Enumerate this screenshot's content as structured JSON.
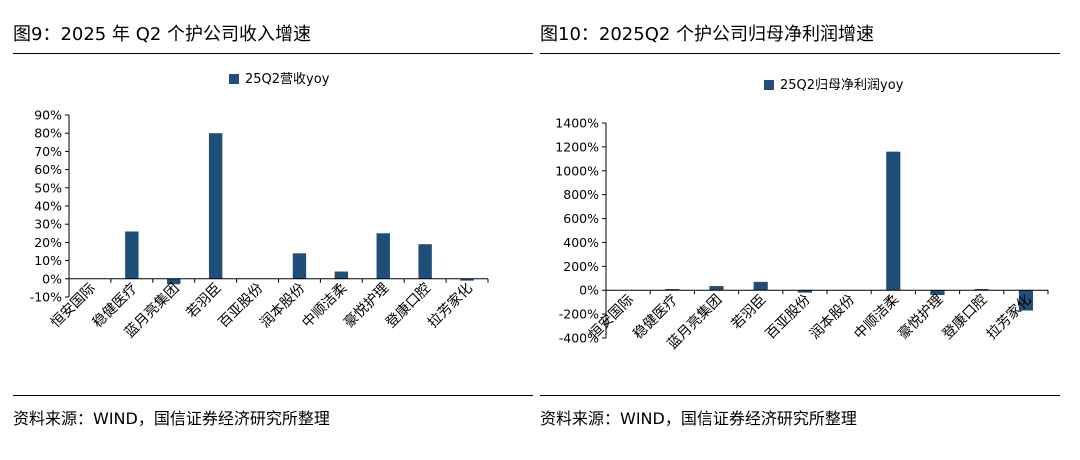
{
  "chart_data": [
    {
      "type": "bar",
      "title": "图9：2025 年 Q2 个护公司收入增速",
      "source": "资料来源：WIND，国信证券经济研究所整理",
      "categories": [
        "恒安国际",
        "稳健医疗",
        "蓝月亮集团",
        "若羽臣",
        "百亚股份",
        "润本股份",
        "中顺洁柔",
        "豪悦护理",
        "登康口腔",
        "拉芳家化"
      ],
      "series": [
        {
          "name": "25Q2营收yoy",
          "values": [
            0,
            26,
            -3,
            80,
            0,
            14,
            4,
            25,
            19,
            -1
          ],
          "color": "#1f4e79"
        }
      ],
      "ylim": [
        -10,
        90
      ],
      "yticks": [
        -10,
        0,
        10,
        20,
        30,
        40,
        50,
        60,
        70,
        80,
        90
      ],
      "ytick_labels": [
        "-10%",
        "0%",
        "10%",
        "20%",
        "30%",
        "40%",
        "50%",
        "60%",
        "70%",
        "80%",
        "90%"
      ],
      "legend": "top-center",
      "grid": false
    },
    {
      "type": "bar",
      "title": "图10：2025Q2 个护公司归母净利润增速",
      "source": "资料来源：WIND，国信证券经济研究所整理",
      "categories": [
        "恒安国际",
        "稳健医疗",
        "蓝月亮集团",
        "若羽臣",
        "百亚股份",
        "润本股份",
        "中顺洁柔",
        "豪悦护理",
        "登康口腔",
        "拉芳家化"
      ],
      "series": [
        {
          "name": "25Q2归母净利润yoy",
          "values": [
            0,
            10,
            35,
            70,
            -20,
            0,
            1160,
            -40,
            10,
            -170
          ],
          "color": "#1f4e79"
        }
      ],
      "ylim": [
        -400,
        1400
      ],
      "yticks": [
        -400,
        -200,
        0,
        200,
        400,
        600,
        800,
        1000,
        1200,
        1400
      ],
      "ytick_labels": [
        "-400%",
        "-200%",
        "0%",
        "200%",
        "400%",
        "600%",
        "800%",
        "1000%",
        "1200%",
        "1400%"
      ],
      "legend": "top-center",
      "grid": false
    }
  ]
}
